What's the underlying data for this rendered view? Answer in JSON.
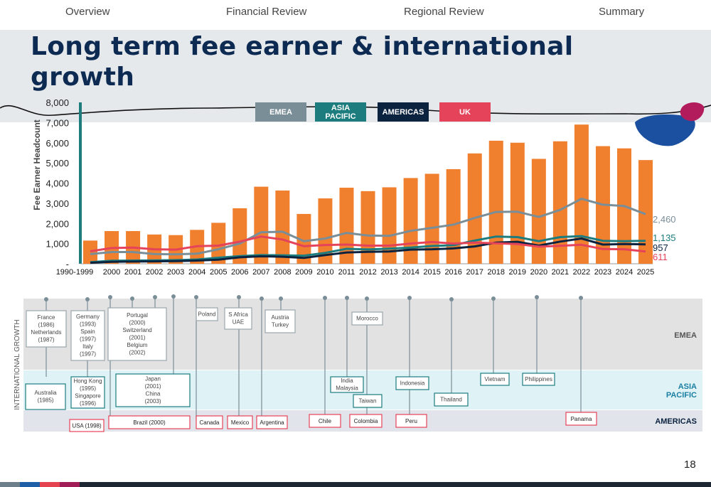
{
  "nav": {
    "items": [
      "Overview",
      "Financial Review",
      "Regional Review",
      "Summary"
    ]
  },
  "title": "Long term fee earner & international growth",
  "page_number": "18",
  "colors": {
    "emea": "#7a8e98",
    "apac": "#1c7c7e",
    "americas": "#0c2340",
    "uk": "#e5435a",
    "bar": "#f07f2e",
    "title": "#0c2a52"
  },
  "legend": [
    "EMEA",
    "ASIA PACIFIC",
    "AMERICAS",
    "UK"
  ],
  "chart_data": {
    "type": "bar",
    "ylabel": "Fee Earner Headcount",
    "ylim": [
      0,
      8000
    ],
    "yticks": [
      "8,000",
      "7,000",
      "6,000",
      "5,000",
      "4,000",
      "3,000",
      "2,000",
      "1,000",
      "-"
    ],
    "categories": [
      "1990-1999",
      "2000",
      "2001",
      "2002",
      "2003",
      "2004",
      "2005",
      "2006",
      "2007",
      "2008",
      "2009",
      "2010",
      "2011",
      "2012",
      "2013",
      "2014",
      "2015",
      "2016",
      "2017",
      "2018",
      "2019",
      "2020",
      "2021",
      "2022",
      "2023",
      "2024",
      "2025"
    ],
    "values": [
      1150,
      1620,
      1620,
      1450,
      1420,
      1680,
      2030,
      2750,
      3820,
      3630,
      2470,
      3240,
      3770,
      3600,
      3790,
      4250,
      4460,
      4690,
      5470,
      6100,
      6000,
      5200,
      6070,
      6900,
      5830,
      5720,
      5140
    ],
    "series": [
      {
        "name": "EMEA",
        "values": [
          480,
          580,
          580,
          480,
          470,
          500,
          720,
          1000,
          1560,
          1590,
          1120,
          1250,
          1530,
          1400,
          1380,
          1630,
          1780,
          1940,
          2270,
          2570,
          2580,
          2320,
          2670,
          3220,
          2930,
          2860,
          2460
        ],
        "end_label": "2,460"
      },
      {
        "name": "ASIA PACIFIC",
        "values": [
          80,
          150,
          160,
          170,
          180,
          210,
          300,
          380,
          430,
          420,
          400,
          540,
          740,
          710,
          750,
          800,
          880,
          920,
          1150,
          1350,
          1320,
          1120,
          1320,
          1370,
          1140,
          1120,
          1135
        ],
        "end_label": "1,135"
      },
      {
        "name": "AMERICAS",
        "values": [
          50,
          100,
          110,
          120,
          130,
          160,
          200,
          320,
          370,
          350,
          290,
          430,
          560,
          590,
          610,
          700,
          720,
          760,
          860,
          1050,
          1090,
          900,
          1100,
          1250,
          950,
          980,
          957
        ],
        "end_label": "957"
      },
      {
        "name": "UK",
        "values": [
          620,
          780,
          800,
          720,
          700,
          870,
          900,
          1100,
          1350,
          1200,
          870,
          930,
          950,
          900,
          900,
          1000,
          1080,
          1000,
          1050,
          1010,
          980,
          850,
          890,
          940,
          730,
          720,
          611
        ],
        "end_label": "611"
      }
    ]
  },
  "timeline": {
    "side_label": "INTERNATIONAL GROWTH",
    "bands": [
      "EMEA",
      "ASIA PACIFIC",
      "AMERICAS"
    ],
    "emea_boxes": [
      {
        "lines": [
          "France",
          "(1986)",
          "Netherlands",
          "(1987)"
        ]
      },
      {
        "lines": [
          "Germany",
          "(1993)",
          "Spain",
          "(1997)",
          "Italy",
          "(1997)"
        ]
      },
      {
        "lines": [
          "Portugal",
          "(2000)",
          "Switzerland",
          "(2001)",
          "Belgium",
          "(2002)"
        ]
      },
      {
        "lines": [
          "Poland"
        ]
      },
      {
        "lines": [
          "S Africa",
          "UAE"
        ]
      },
      {
        "lines": [
          "Austria",
          "Turkey"
        ]
      },
      {
        "lines": [
          "Morocco"
        ]
      }
    ],
    "apac_boxes": [
      {
        "lines": [
          "Australia",
          "(1985)"
        ]
      },
      {
        "lines": [
          "Hong Kong",
          "(1995)",
          "Singapore",
          "(1996)"
        ]
      },
      {
        "lines": [
          "Japan",
          "(2001)",
          "China",
          "(2003)"
        ]
      },
      {
        "lines": [
          "India",
          "Malaysia"
        ]
      },
      {
        "lines": [
          "Taiwan"
        ]
      },
      {
        "lines": [
          "Indonesia"
        ]
      },
      {
        "lines": [
          "Thailand"
        ]
      },
      {
        "lines": [
          "Vietnam"
        ]
      },
      {
        "lines": [
          "Philippines"
        ]
      }
    ],
    "americas_boxes": [
      "USA (1998)",
      "Brazil (2000)",
      "Canada",
      "Mexico",
      "Argentina",
      "Chile",
      "Colombia",
      "Peru",
      "Panama"
    ]
  }
}
